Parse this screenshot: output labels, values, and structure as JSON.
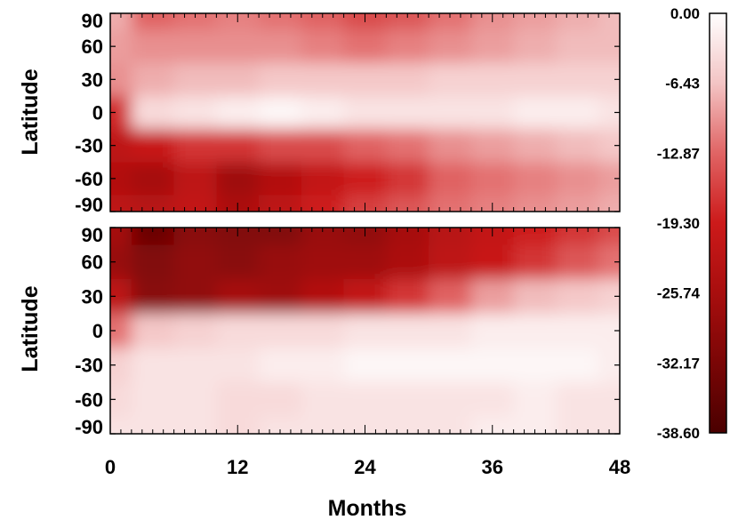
{
  "chart_data": {
    "type": "heatmap",
    "xlabel": "Months",
    "ylabel": "Latitude",
    "x_ticks": [
      0,
      12,
      24,
      36,
      48
    ],
    "x_range": [
      0,
      48
    ],
    "y_ticks": [
      90,
      60,
      30,
      0,
      -30,
      -60,
      -90
    ],
    "y_range": [
      -90,
      90
    ],
    "colorbar": {
      "range": [
        -38.6,
        0.0
      ],
      "tick_labels": [
        "0.00",
        "-6.43",
        "-12.87",
        "-19.30",
        "-25.74",
        "-32.17",
        "-38.60"
      ],
      "colors": [
        "#ffffff",
        "#f3c4c4",
        "#e06464",
        "#cc1a1a",
        "#a80e0e",
        "#7a0606",
        "#4a0000"
      ]
    },
    "panels": [
      {
        "id": "top",
        "grid_rows": [
          {
            "lat": 90,
            "values": [
              -8,
              -13,
              -12,
              -11,
              -12,
              -13,
              -15,
              -14,
              -12,
              -10,
              -9,
              -8,
              -7
            ]
          },
          {
            "lat": 60,
            "values": [
              -9,
              -10,
              -10,
              -10,
              -10,
              -11,
              -12,
              -11,
              -10,
              -9,
              -8,
              -7,
              -7
            ]
          },
          {
            "lat": 30,
            "values": [
              -10,
              -8,
              -7,
              -7,
              -6,
              -6,
              -6,
              -6,
              -5,
              -5,
              -5,
              -5,
              -5
            ]
          },
          {
            "lat": 0,
            "values": [
              -18,
              -4,
              -3,
              -2,
              -1,
              -2,
              -3,
              -3,
              -3,
              -3,
              -2,
              -2,
              -3
            ]
          },
          {
            "lat": -30,
            "values": [
              -22,
              -20,
              -17,
              -17,
              -15,
              -15,
              -13,
              -12,
              -10,
              -9,
              -8,
              -7,
              -6
            ]
          },
          {
            "lat": -60,
            "values": [
              -24,
              -26,
              -22,
              -27,
              -24,
              -21,
              -19,
              -17,
              -13,
              -12,
              -11,
              -10,
              -9
            ]
          },
          {
            "lat": -90,
            "values": [
              -22,
              -23,
              -21,
              -25,
              -22,
              -19,
              -16,
              -14,
              -12,
              -11,
              -10,
              -9,
              -8
            ]
          }
        ]
      },
      {
        "id": "bottom",
        "grid_rows": [
          {
            "lat": 90,
            "values": [
              -26,
              -34,
              -30,
              -31,
              -31,
              -28,
              -29,
              -26,
              -23,
              -21,
              -19,
              -17,
              -15
            ]
          },
          {
            "lat": 60,
            "values": [
              -28,
              -31,
              -29,
              -30,
              -28,
              -27,
              -27,
              -25,
              -22,
              -20,
              -17,
              -14,
              -12
            ]
          },
          {
            "lat": 30,
            "values": [
              -22,
              -30,
              -29,
              -26,
              -27,
              -24,
              -21,
              -17,
              -13,
              -9,
              -7,
              -6,
              -5
            ]
          },
          {
            "lat": 0,
            "values": [
              -12,
              -6,
              -5,
              -4,
              -4,
              -4,
              -3,
              -3,
              -3,
              -2,
              -2,
              -2,
              -2
            ]
          },
          {
            "lat": -30,
            "values": [
              -5,
              -3,
              -3,
              -3,
              -2,
              -2,
              -1,
              -1,
              -1,
              -1,
              -1,
              -1,
              -2
            ]
          },
          {
            "lat": -60,
            "values": [
              -4,
              -3,
              -3,
              -4,
              -4,
              -3,
              -3,
              -3,
              -3,
              -3,
              -2,
              -3,
              -3
            ]
          },
          {
            "lat": -90,
            "values": [
              -3,
              -3,
              -3,
              -4,
              -3,
              -3,
              -3,
              -3,
              -3,
              -2,
              -2,
              -3,
              -3
            ]
          }
        ]
      }
    ]
  }
}
